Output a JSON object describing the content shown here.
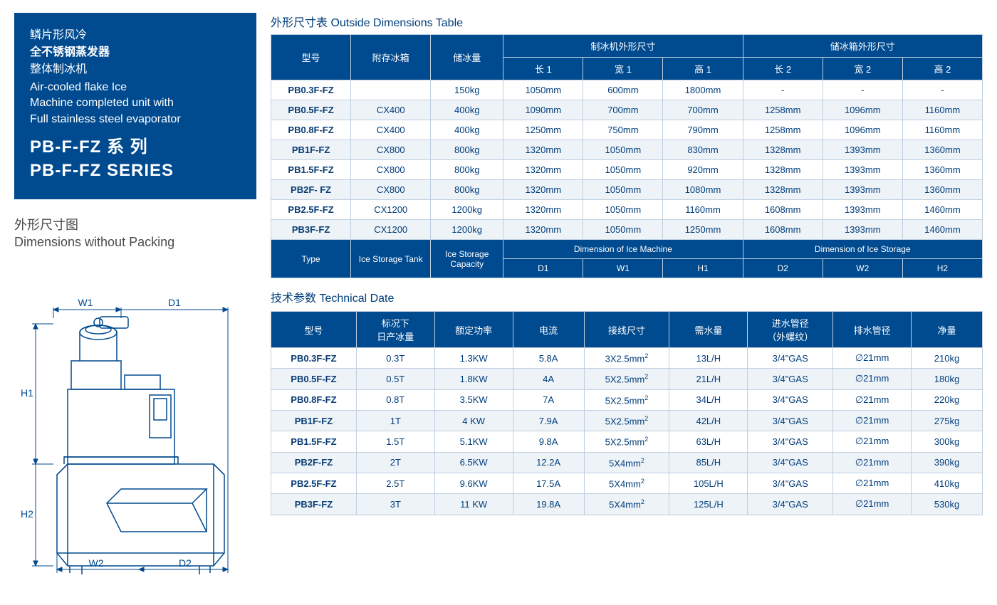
{
  "colors": {
    "brand_blue": "#004a8f",
    "text_blue": "#003d7a",
    "border": "#bfcfe0",
    "row_alt": "#eef3f8",
    "row_bg": "#ffffff",
    "diagram_stroke": "#004a8f",
    "white": "#ffffff",
    "grey_text": "#4a4a4a"
  },
  "leftBox": {
    "cn_line1": "鳞片形风冷",
    "cn_line2": "全不锈钢蒸发器",
    "cn_line3": "整体制冰机",
    "en_line1": "Air-cooled flake Ice",
    "en_line2": "Machine completed unit with",
    "en_line3": "Full stainless steel evaporator",
    "series_cn": "PB-F-FZ 系    列",
    "series_en": "PB-F-FZ SERIES"
  },
  "dimLabel": {
    "cn": "外形尺寸图",
    "en": "Dimensions without Packing"
  },
  "diagram": {
    "labels": {
      "W1": "W1",
      "D1": "D1",
      "H1": "H1",
      "H2": "H2",
      "D2": "D2",
      "W2": "W2"
    },
    "stroke_color": "#004a8f",
    "stroke_width": 1.5,
    "font_size": 13
  },
  "table1": {
    "title": "外形尺寸表  Outside Dimensions Table",
    "header_cn": {
      "model": "型号",
      "tank": "附存冰箱",
      "capacity": "储冰量",
      "machine_dim": "制冰机外形尺寸",
      "L1": "长 1",
      "W1": "宽 1",
      "H1": "高 1",
      "storage_dim": "储冰箱外形尺寸",
      "L2": "长 2",
      "W2": "宽 2",
      "H2": "高 2"
    },
    "header_en": {
      "type": "Type",
      "tank": "Ice Storage Tank",
      "capacity": "Ice Storage Capacity",
      "machine_dim": "Dimension of Ice Machine",
      "D1": "D1",
      "W1": "W1",
      "H1": "H1",
      "storage_dim": "Dimension of Ice Storage",
      "D2": "D2",
      "W2": "W2",
      "H2": "H2"
    },
    "rows": [
      {
        "model": "PB0.3F-FZ",
        "tank": "",
        "cap": "150kg",
        "l1": "1050mm",
        "w1": "600mm",
        "h1": "1800mm",
        "l2": "-",
        "w2": "-",
        "h2": "-"
      },
      {
        "model": "PB0.5F-FZ",
        "tank": "CX400",
        "cap": "400kg",
        "l1": "1090mm",
        "w1": "700mm",
        "h1": "700mm",
        "l2": "1258mm",
        "w2": "1096mm",
        "h2": "1160mm"
      },
      {
        "model": "PB0.8F-FZ",
        "tank": "CX400",
        "cap": "400kg",
        "l1": "1250mm",
        "w1": "750mm",
        "h1": "790mm",
        "l2": "1258mm",
        "w2": "1096mm",
        "h2": "1160mm"
      },
      {
        "model": "PB1F-FZ",
        "tank": "CX800",
        "cap": "800kg",
        "l1": "1320mm",
        "w1": "1050mm",
        "h1": "830mm",
        "l2": "1328mm",
        "w2": "1393mm",
        "h2": "1360mm"
      },
      {
        "model": "PB1.5F-FZ",
        "tank": "CX800",
        "cap": "800kg",
        "l1": "1320mm",
        "w1": "1050mm",
        "h1": "920mm",
        "l2": "1328mm",
        "w2": "1393mm",
        "h2": "1360mm"
      },
      {
        "model": "PB2F- FZ",
        "tank": "CX800",
        "cap": "800kg",
        "l1": "1320mm",
        "w1": "1050mm",
        "h1": "1080mm",
        "l2": "1328mm",
        "w2": "1393mm",
        "h2": "1360mm"
      },
      {
        "model": "PB2.5F-FZ",
        "tank": "CX1200",
        "cap": "1200kg",
        "l1": "1320mm",
        "w1": "1050mm",
        "h1": "1160mm",
        "l2": "1608mm",
        "w2": "1393mm",
        "h2": "1460mm"
      },
      {
        "model": "PB3F-FZ",
        "tank": "CX1200",
        "cap": "1200kg",
        "l1": "1320mm",
        "w1": "1050mm",
        "h1": "1250mm",
        "l2": "1608mm",
        "w2": "1393mm",
        "h2": "1460mm"
      }
    ]
  },
  "table2": {
    "title": "技术参数 Technical Date",
    "header_cn": {
      "model": "型号",
      "daily_output": "标况下\n日产冰量",
      "power": "额定功率",
      "current": "电流",
      "wire": "接线尺寸",
      "water_demand": "需水量",
      "inlet": "进水管径\n（外螺纹）",
      "outlet": "排水管径",
      "weight": "净量"
    },
    "rows": [
      {
        "model": "PB0.3F-FZ",
        "out": "0.3T",
        "pw": "1.3KW",
        "cur": "5.8A",
        "wire": "3X2.5mm²",
        "wd": "13L/H",
        "in": "3/4\"GAS",
        "drain": "∅21mm",
        "wt": "210kg"
      },
      {
        "model": "PB0.5F-FZ",
        "out": "0.5T",
        "pw": "1.8KW",
        "cur": "4A",
        "wire": "5X2.5mm²",
        "wd": "21L/H",
        "in": "3/4\"GAS",
        "drain": "∅21mm",
        "wt": "180kg"
      },
      {
        "model": "PB0.8F-FZ",
        "out": "0.8T",
        "pw": "3.5KW",
        "cur": "7A",
        "wire": "5X2.5mm²",
        "wd": "34L/H",
        "in": "3/4\"GAS",
        "drain": "∅21mm",
        "wt": "220kg"
      },
      {
        "model": "PB1F-FZ",
        "out": "1T",
        "pw": "4 KW",
        "cur": "7.9A",
        "wire": "5X2.5mm²",
        "wd": "42L/H",
        "in": "3/4\"GAS",
        "drain": "∅21mm",
        "wt": "275kg"
      },
      {
        "model": "PB1.5F-FZ",
        "out": "1.5T",
        "pw": "5.1KW",
        "cur": "9.8A",
        "wire": "5X2.5mm²",
        "wd": "63L/H",
        "in": "3/4\"GAS",
        "drain": "∅21mm",
        "wt": "300kg"
      },
      {
        "model": "PB2F-FZ",
        "out": "2T",
        "pw": "6.5KW",
        "cur": "12.2A",
        "wire": "5X4mm²",
        "wd": "85L/H",
        "in": "3/4\"GAS",
        "drain": "∅21mm",
        "wt": "390kg"
      },
      {
        "model": "PB2.5F-FZ",
        "out": "2.5T",
        "pw": "9.6KW",
        "cur": "17.5A",
        "wire": "5X4mm²",
        "wd": "105L/H",
        "in": "3/4\"GAS",
        "drain": "∅21mm",
        "wt": "410kg"
      },
      {
        "model": "PB3F-FZ",
        "out": "3T",
        "pw": "11 KW",
        "cur": "19.8A",
        "wire": "5X4mm²",
        "wd": "125L/H",
        "in": "3/4\"GAS",
        "drain": "∅21mm",
        "wt": "530kg"
      }
    ]
  }
}
